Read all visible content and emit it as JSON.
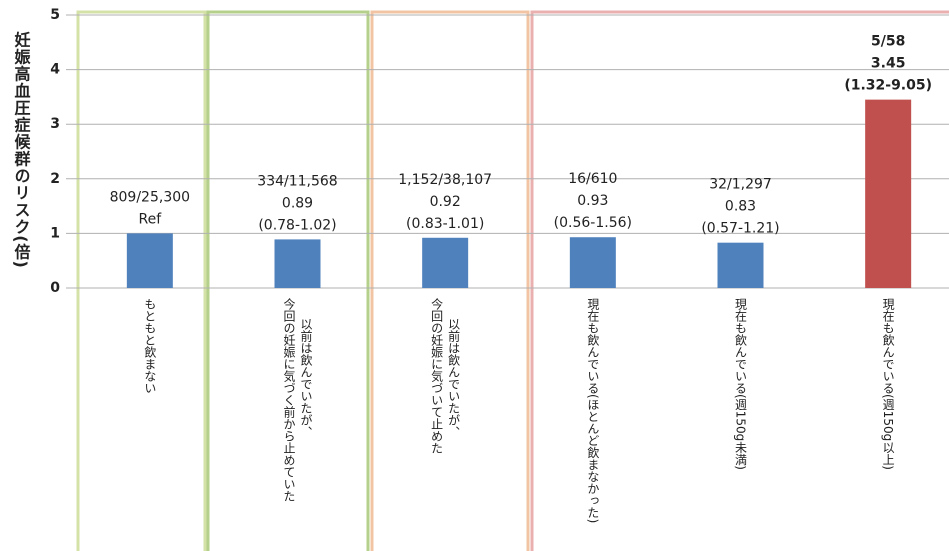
{
  "chart_data": {
    "type": "bar",
    "y_label": "妊娠高血圧症候群のリスク(倍)",
    "categories": [
      [
        "もともと飲まない"
      ],
      [
        "以前は飲んでいたが、",
        "今回の妊娠に気づく前から止めていた"
      ],
      [
        "以前は飲んでいたが、",
        "今回の妊娠に気づいて止めた"
      ],
      [
        "現在も飲んでいる(ほとんど飲まなかった)"
      ],
      [
        "現在も飲んでいる(週150g未満)"
      ],
      [
        "現在も飲んでいる(週150g以上)"
      ]
    ],
    "values": [
      1,
      0.89,
      0.92,
      0.93,
      0.83,
      3.45
    ],
    "bar_labels": [
      [
        "809/25,300",
        "Ref"
      ],
      [
        "334/11,568",
        "0.89",
        "(0.78-1.02)"
      ],
      [
        "1,152/38,107",
        "0.92",
        "(0.83-1.01)"
      ],
      [
        "16/610",
        "0.93",
        "(0.56-1.56)"
      ],
      [
        "32/1,297",
        "0.83",
        "(0.57-1.21)"
      ],
      [
        "5/58",
        "3.45",
        "(1.32-9.05)"
      ]
    ],
    "colors": [
      "#4f81bd",
      "#4f81bd",
      "#4f81bd",
      "#4f81bd",
      "#4f81bd",
      "#c0504d"
    ],
    "ylim": [
      0,
      5
    ],
    "yticks": [
      0,
      1,
      2,
      3,
      4,
      5
    ],
    "grid": true
  }
}
